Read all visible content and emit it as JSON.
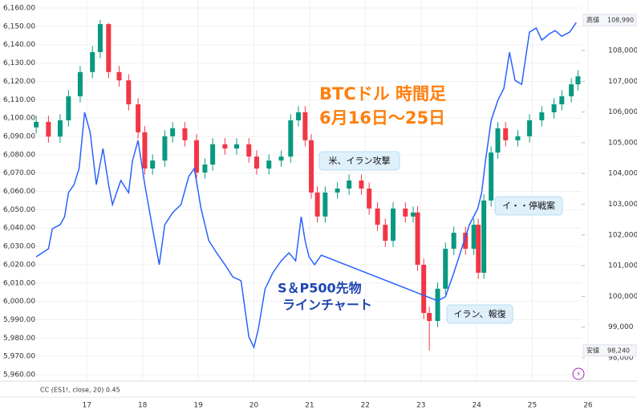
{
  "chart_data": {
    "type": "candlestick",
    "title": "BTCドル 時間足",
    "subtitle": "6月16日〜25日",
    "xlim": [
      15.44,
      26.88
    ],
    "xticks": [
      17,
      18,
      19,
      20,
      21,
      22,
      23,
      24,
      25,
      26
    ],
    "ylim": [
      5956.5,
      6164.4
    ],
    "yticks": [
      {
        "value": 5960,
        "label": "5,960.00"
      },
      {
        "value": 5970,
        "label": "5,970.00"
      },
      {
        "value": 5980,
        "label": "5,980.00"
      },
      {
        "value": 5990,
        "label": "5,990.00"
      },
      {
        "value": 6000,
        "label": "6,000.00"
      },
      {
        "value": 6010,
        "label": "6,010.00"
      },
      {
        "value": 6020,
        "label": "6,020.00"
      },
      {
        "value": 6030,
        "label": "6,030.00"
      },
      {
        "value": 6040,
        "label": "6,040.00"
      },
      {
        "value": 6050,
        "label": "6,050.00"
      },
      {
        "value": 6060,
        "label": "6,060.00"
      },
      {
        "value": 6070,
        "label": "6,070.00"
      },
      {
        "value": 6080,
        "label": "6,080.00"
      },
      {
        "value": 6090,
        "label": "6,090.00"
      },
      {
        "value": 6100,
        "label": "6,100.00"
      },
      {
        "value": 6110,
        "label": "6,110.00"
      },
      {
        "value": 6120,
        "label": "6,120.00"
      },
      {
        "value": 6130,
        "label": "6,130.00"
      },
      {
        "value": 6140,
        "label": "6,140.00"
      },
      {
        "value": 6150,
        "label": "6,150.00"
      },
      {
        "value": 6160,
        "label": "6,160.00"
      }
    ],
    "y2lim": [
      97243,
      109645
    ],
    "y2ticks": [
      {
        "value": 98000,
        "label": "98,000"
      },
      {
        "value": 99000,
        "label": "99,000"
      },
      {
        "value": 100000,
        "label": "100,000"
      },
      {
        "value": 101000,
        "label": "101,000"
      },
      {
        "value": 102000,
        "label": "102,000"
      },
      {
        "value": 103000,
        "label": "103,000"
      },
      {
        "value": 104000,
        "label": "104,000"
      },
      {
        "value": 105000,
        "label": "105,000"
      },
      {
        "value": 106000,
        "label": "106,000"
      },
      {
        "value": 107000,
        "label": "107,000"
      },
      {
        "value": 108000,
        "label": "108,000"
      }
    ],
    "grid": true,
    "series": [
      {
        "type": "candlestick",
        "axis": "y2",
        "up_color": "#089981",
        "down_color": "#f23645",
        "x": [
          16.09,
          16.31,
          16.52,
          16.67,
          16.88,
          17.1,
          17.24,
          17.39,
          17.58,
          17.75,
          17.92,
          18.04,
          18.18,
          18.4,
          18.54,
          18.76,
          18.97,
          19.12,
          19.26,
          19.48,
          19.69,
          19.91,
          20.05,
          20.27,
          20.49,
          20.66,
          20.8,
          20.92,
          21.03,
          21.14,
          21.28,
          21.5,
          21.71,
          21.93,
          22.07,
          22.22,
          22.36,
          22.5,
          22.72,
          22.86,
          22.94,
          23.05,
          23.15,
          23.3,
          23.44,
          23.59,
          23.8,
          23.95,
          24.03,
          24.13,
          24.26,
          24.38,
          24.52,
          24.74,
          24.95,
          25.17,
          25.39,
          25.53,
          25.7,
          25.82
        ],
        "open": [
          105500,
          105680,
          105200,
          105730,
          106510,
          107300,
          107950,
          108860,
          107300,
          107030,
          106250,
          105340,
          104160,
          104420,
          105210,
          105470,
          105080,
          104030,
          104290,
          104950,
          104810,
          104950,
          104550,
          104160,
          104420,
          104550,
          105730,
          105990,
          105080,
          103380,
          102600,
          103380,
          103510,
          103770,
          103510,
          102860,
          102330,
          101810,
          102860,
          102600,
          102730,
          101030,
          99460,
          99200,
          100250,
          101550,
          102070,
          101550,
          102330,
          100770,
          103120,
          104680,
          105470,
          105080,
          105210,
          105730,
          105990,
          106250,
          106510,
          106900
        ],
        "high": [
          105880,
          105880,
          105930,
          106710,
          107500,
          108150,
          108990,
          108900,
          107500,
          107230,
          106450,
          105540,
          104620,
          105410,
          105670,
          105670,
          105280,
          104490,
          105150,
          105150,
          105150,
          105150,
          104750,
          104620,
          104750,
          105930,
          106190,
          106190,
          105280,
          103580,
          103580,
          103710,
          103970,
          103970,
          103710,
          103060,
          102530,
          103060,
          103060,
          102930,
          102930,
          101230,
          99660,
          100450,
          101750,
          102270,
          102270,
          102530,
          102530,
          103320,
          104880,
          105670,
          105670,
          105410,
          105930,
          106190,
          106450,
          106710,
          107100,
          107360
        ],
        "low": [
          105300,
          105000,
          105000,
          105530,
          106310,
          107100,
          107750,
          107100,
          106830,
          106050,
          105140,
          103960,
          103960,
          104220,
          105010,
          104880,
          103830,
          103830,
          104090,
          104610,
          104610,
          104350,
          103960,
          103960,
          104220,
          104350,
          105530,
          104880,
          103180,
          102400,
          102400,
          103180,
          103310,
          103310,
          102660,
          102130,
          101610,
          101610,
          102400,
          102400,
          100830,
          99260,
          98240,
          99000,
          100050,
          101350,
          101350,
          101350,
          100570,
          100570,
          102920,
          104480,
          104880,
          104880,
          105010,
          105530,
          105790,
          106050,
          106310,
          106700
        ],
        "close": [
          105680,
          105200,
          105730,
          106510,
          107300,
          107950,
          108860,
          107300,
          107030,
          106250,
          105340,
          104160,
          104420,
          105210,
          105470,
          105080,
          104030,
          104290,
          104950,
          104810,
          104950,
          104550,
          104160,
          104420,
          104550,
          105730,
          105990,
          105080,
          103380,
          102600,
          103380,
          103510,
          103770,
          103510,
          102860,
          102330,
          101810,
          102860,
          102600,
          102730,
          101030,
          99460,
          99200,
          100250,
          101550,
          102070,
          101550,
          102330,
          100770,
          103120,
          104680,
          105470,
          105080,
          105210,
          105730,
          105990,
          106250,
          106510,
          106900,
          107160
        ]
      },
      {
        "type": "line",
        "color": "#2962ff",
        "x": [
          16.09,
          16.31,
          16.38,
          16.52,
          16.6,
          16.67,
          16.77,
          16.86,
          16.96,
          17.06,
          17.17,
          17.29,
          17.39,
          17.46,
          17.61,
          17.75,
          17.82,
          17.92,
          18.04,
          18.18,
          18.3,
          18.4,
          18.54,
          18.69,
          18.83,
          18.93,
          19.05,
          19.19,
          19.33,
          19.48,
          19.62,
          19.77,
          19.91,
          20.0,
          20.08,
          20.2,
          20.34,
          20.49,
          20.63,
          20.75,
          20.85,
          20.92,
          20.99,
          21.09,
          21.21,
          23.3,
          23.44,
          23.59,
          23.73,
          23.87,
          24.02,
          24.09,
          24.16,
          24.26,
          24.38,
          24.49,
          24.59,
          24.69,
          24.81,
          24.95,
          25.07,
          25.17,
          25.31,
          25.41,
          25.53,
          25.67,
          25.79
        ],
        "values": [
          6024.3,
          6028.7,
          6039.6,
          6041.8,
          6046.2,
          6059.3,
          6063.7,
          6072.5,
          6103.1,
          6092.2,
          6063.7,
          6083.4,
          6063.7,
          6052.8,
          6065.9,
          6059.3,
          6076.8,
          6087.8,
          6063.7,
          6039.6,
          6020.0,
          6041.8,
          6048.4,
          6052.8,
          6068.1,
          6072.5,
          6050.6,
          6033.1,
          6026.5,
          6020.0,
          6013.4,
          6011.2,
          5980.6,
          5974.9,
          5984.9,
          6006.8,
          6015.6,
          6022.1,
          6026.5,
          6022.1,
          6046.2,
          6033.1,
          6024.3,
          6020.0,
          6025.2,
          6000.3,
          6002.5,
          6015.6,
          6028.7,
          6041.8,
          6050.6,
          6059.3,
          6076.8,
          6098.7,
          6109.6,
          6116.2,
          6135.9,
          6120.6,
          6118.4,
          6146.9,
          6149.1,
          6142.5,
          6146.0,
          6147.7,
          6144.6,
          6146.9,
          6152.1
        ]
      }
    ],
    "callouts": [
      "米、イラン攻撃",
      "イ・・停戦案",
      "イラン、報復"
    ],
    "line_label": [
      "S＆P500先物",
      "ラインチャート"
    ],
    "extremes": [
      {
        "label": "高値",
        "value": 108990,
        "value_label": "108,990"
      },
      {
        "label": "安値",
        "value": 98240,
        "value_label": "98,240"
      }
    ],
    "indicator": "CC (ES1!, close, 20) 0.45"
  }
}
